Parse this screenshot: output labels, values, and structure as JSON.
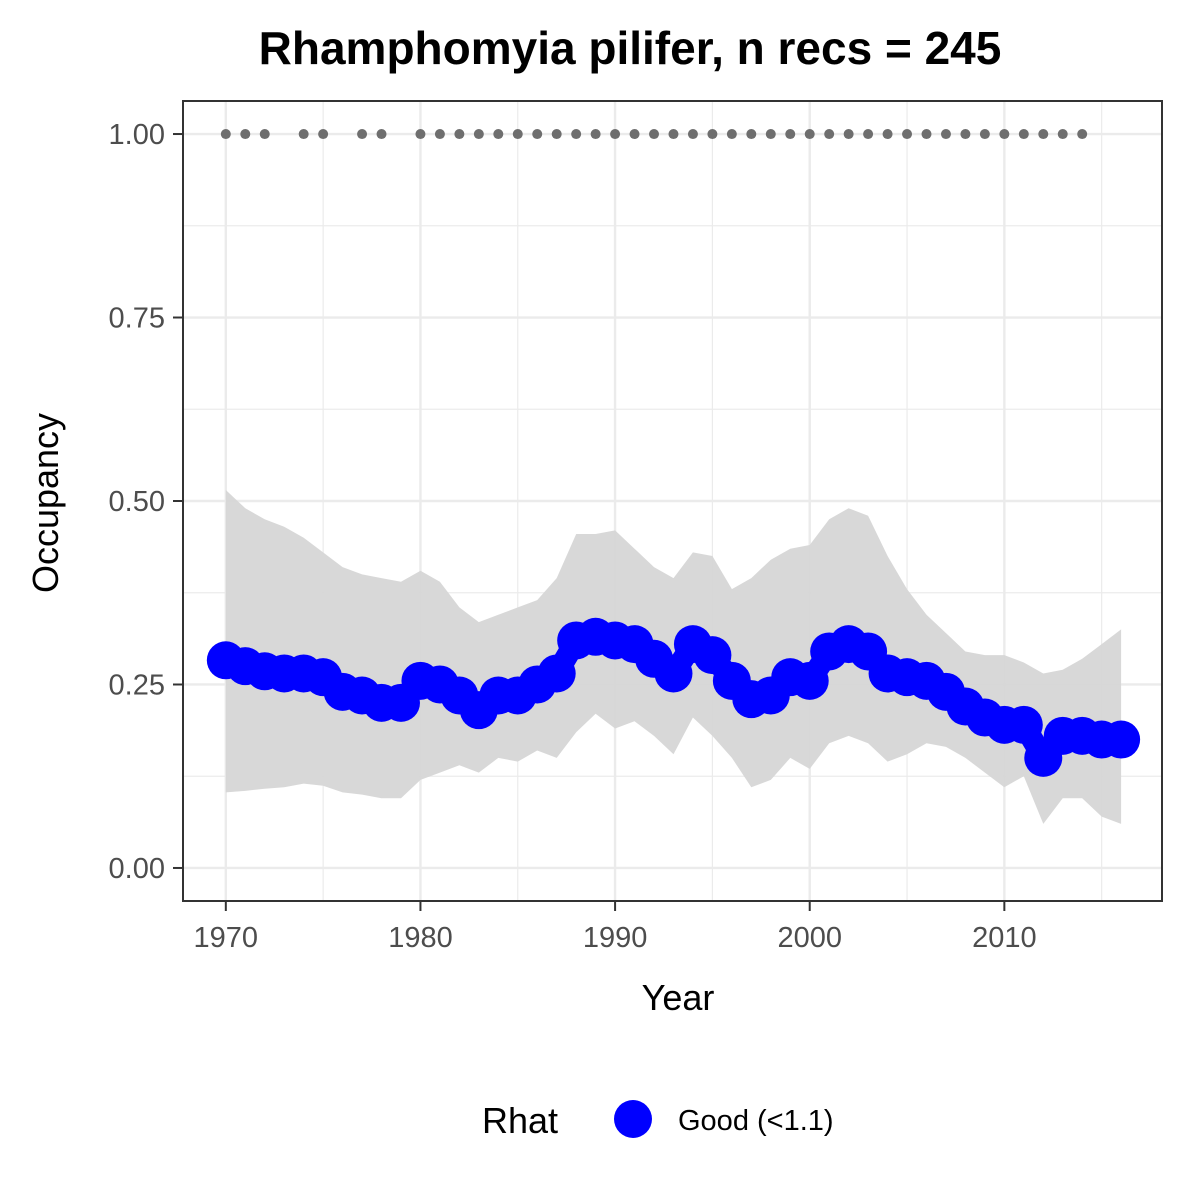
{
  "chart_data": {
    "type": "line",
    "title": "Rhamphomyia pilifer, n recs = 245",
    "xlabel": "Year",
    "ylabel": "Occupancy",
    "xlim": [
      1967.8,
      2018.1
    ],
    "ylim": [
      -0.045,
      1.045
    ],
    "x_ticks": [
      "1970",
      "1980",
      "1990",
      "2000",
      "2010"
    ],
    "y_ticks": [
      "0.00",
      "0.25",
      "0.50",
      "0.75",
      "1.00"
    ],
    "grid": true,
    "legend": {
      "title": "Rhat",
      "position": "bottom",
      "entries": [
        {
          "label": "Good (<1.1)",
          "color": "#0000ff"
        }
      ]
    },
    "colors": {
      "estimate": "#0000ff",
      "ribbon": "#d6d6d6",
      "records": "#6e6e6e",
      "grid": "#ebebeb",
      "panel_border": "#333333"
    },
    "series": [
      {
        "name": "Good (<1.1)",
        "x": [
          1970,
          1971,
          1972,
          1973,
          1974,
          1975,
          1976,
          1977,
          1978,
          1979,
          1980,
          1981,
          1982,
          1983,
          1984,
          1985,
          1986,
          1987,
          1988,
          1989,
          1990,
          1991,
          1992,
          1993,
          1994,
          1995,
          1996,
          1997,
          1998,
          1999,
          2000,
          2001,
          2002,
          2003,
          2004,
          2005,
          2006,
          2007,
          2008,
          2009,
          2010,
          2011,
          2012,
          2013,
          2014,
          2015,
          2016
        ],
        "y": [
          0.283,
          0.275,
          0.268,
          0.265,
          0.265,
          0.26,
          0.24,
          0.235,
          0.225,
          0.225,
          0.255,
          0.25,
          0.235,
          0.215,
          0.235,
          0.235,
          0.25,
          0.265,
          0.31,
          0.315,
          0.31,
          0.305,
          0.285,
          0.265,
          0.305,
          0.29,
          0.255,
          0.23,
          0.235,
          0.26,
          0.255,
          0.295,
          0.305,
          0.295,
          0.265,
          0.26,
          0.255,
          0.24,
          0.22,
          0.205,
          0.195,
          0.195,
          0.15,
          0.18,
          0.18,
          0.175,
          0.175
        ],
        "lower": [
          0.103,
          0.105,
          0.108,
          0.11,
          0.115,
          0.112,
          0.103,
          0.1,
          0.095,
          0.095,
          0.12,
          0.13,
          0.14,
          0.13,
          0.15,
          0.145,
          0.16,
          0.15,
          0.185,
          0.21,
          0.19,
          0.2,
          0.18,
          0.155,
          0.205,
          0.18,
          0.15,
          0.11,
          0.12,
          0.15,
          0.135,
          0.17,
          0.18,
          0.17,
          0.145,
          0.155,
          0.17,
          0.165,
          0.15,
          0.13,
          0.11,
          0.125,
          0.06,
          0.095,
          0.095,
          0.07,
          0.06
        ],
        "upper": [
          0.515,
          0.49,
          0.475,
          0.465,
          0.45,
          0.43,
          0.41,
          0.4,
          0.395,
          0.39,
          0.405,
          0.39,
          0.355,
          0.335,
          0.345,
          0.355,
          0.365,
          0.395,
          0.455,
          0.455,
          0.46,
          0.435,
          0.41,
          0.395,
          0.43,
          0.425,
          0.38,
          0.395,
          0.42,
          0.435,
          0.44,
          0.475,
          0.49,
          0.48,
          0.425,
          0.38,
          0.345,
          0.32,
          0.295,
          0.29,
          0.29,
          0.28,
          0.265,
          0.27,
          0.285,
          0.305,
          0.325
        ]
      }
    ],
    "records": {
      "y": 1.0,
      "years": [
        1970,
        1971,
        1972,
        1974,
        1975,
        1977,
        1978,
        1980,
        1981,
        1982,
        1983,
        1984,
        1985,
        1986,
        1987,
        1988,
        1989,
        1990,
        1991,
        1992,
        1993,
        1994,
        1995,
        1996,
        1997,
        1998,
        1999,
        2000,
        2001,
        2002,
        2003,
        2004,
        2005,
        2006,
        2007,
        2008,
        2009,
        2010,
        2011,
        2012,
        2013,
        2014
      ]
    }
  }
}
